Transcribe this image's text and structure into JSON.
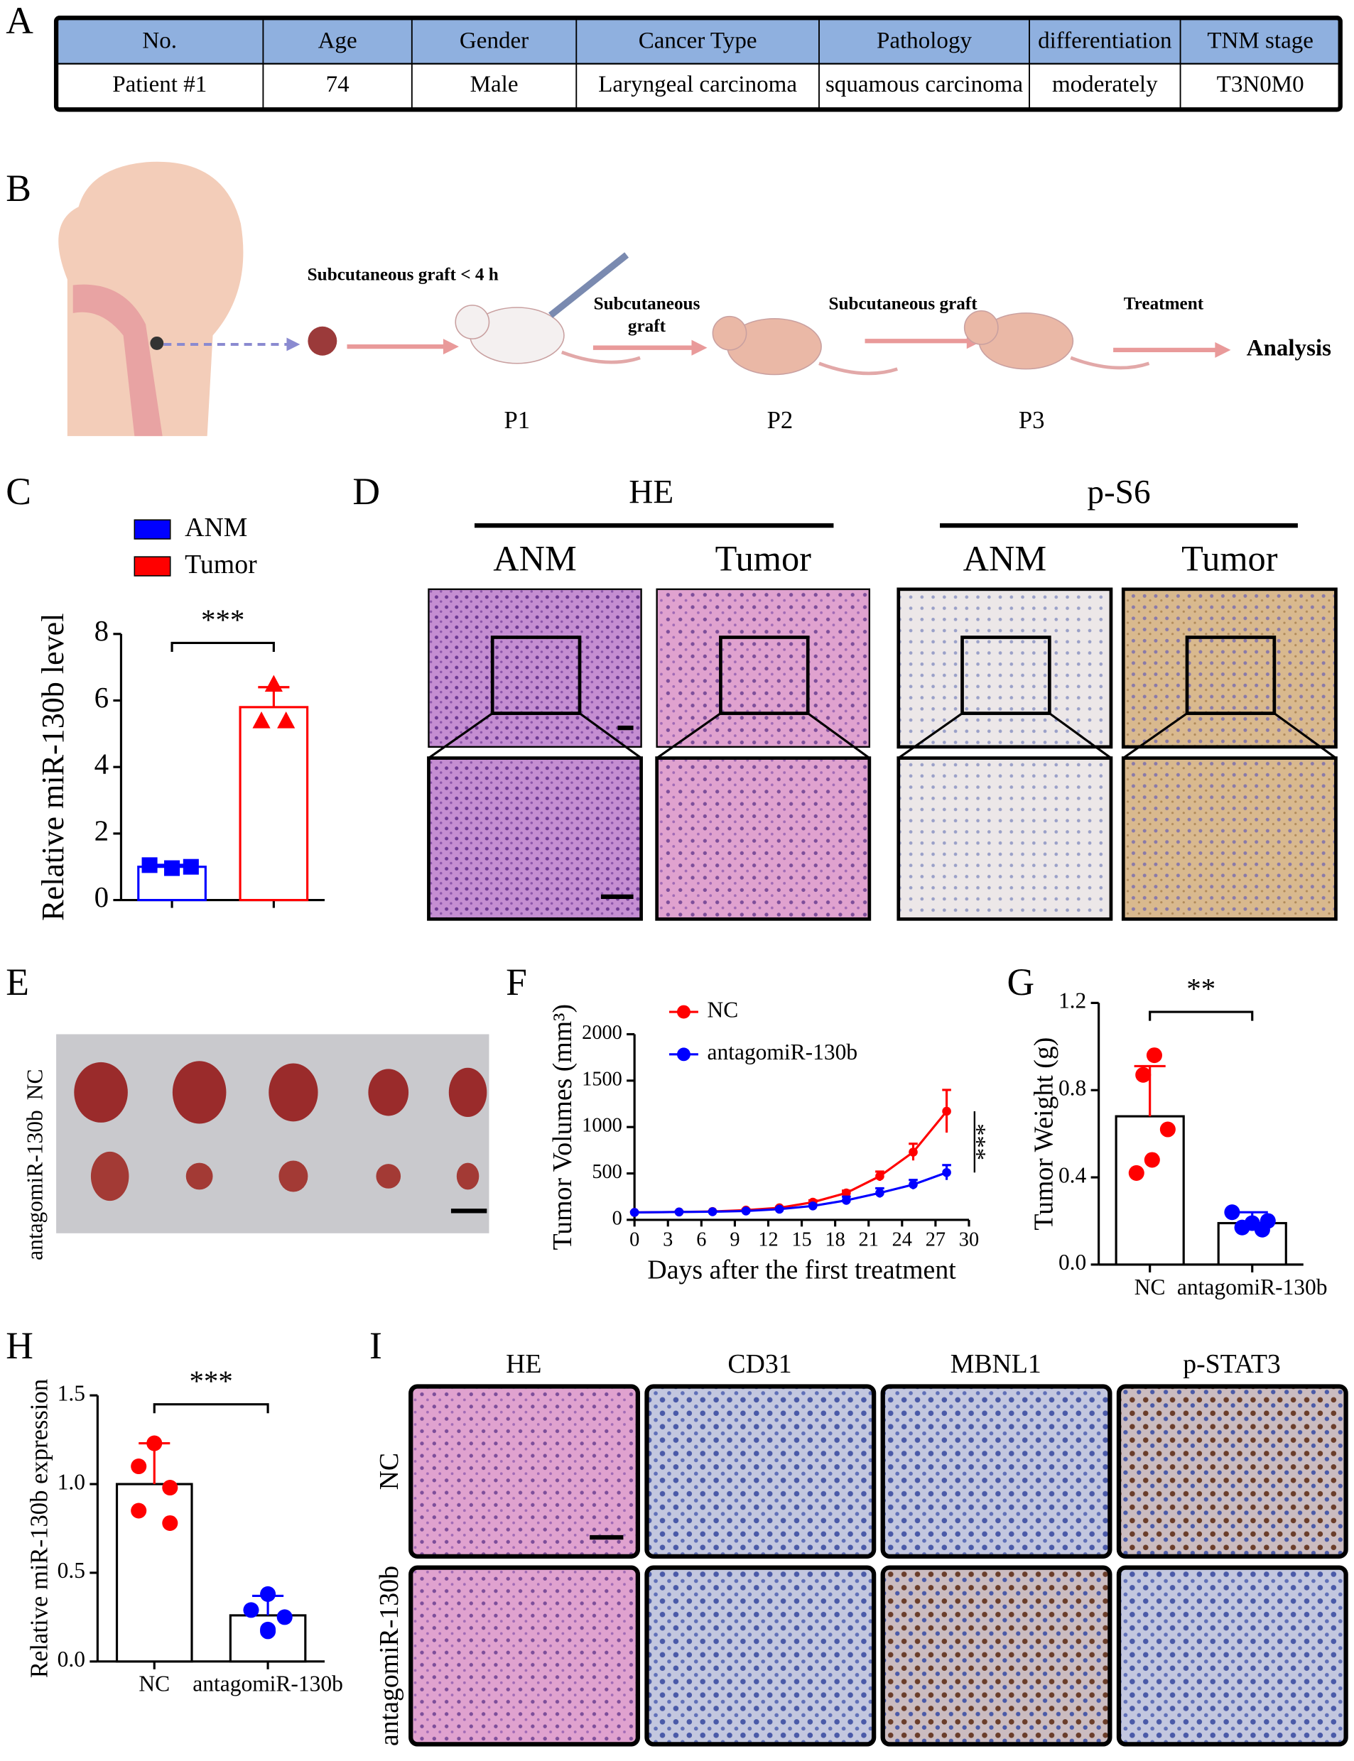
{
  "panels": [
    "A",
    "B",
    "C",
    "D",
    "E",
    "F",
    "G",
    "H",
    "I"
  ],
  "table": {
    "header": [
      "No.",
      "Age",
      "Gender",
      "Cancer Type",
      "Pathology",
      "differentiation",
      "TNM stage"
    ],
    "rows": [
      [
        "Patient #1",
        "74",
        "Male",
        "Laryngeal carcinoma",
        "squamous carcinoma",
        "moderately",
        "T3N0M0"
      ]
    ]
  },
  "diagram": {
    "steps": [
      [
        "Subcutaneous graft < 4 h"
      ],
      [
        "Subcutaneous",
        "graft"
      ],
      [
        "Subcutaneous graft"
      ],
      [
        "Treatment"
      ]
    ],
    "result": "Analysis",
    "passages": [
      "P1",
      "P2",
      "P3"
    ]
  },
  "histology_D": {
    "groups": [
      "HE",
      "p-S6"
    ],
    "columns": [
      "ANM",
      "Tumor",
      "ANM",
      "Tumor"
    ]
  },
  "photo_E": {
    "rows": [
      "NC",
      "antagomiR-130b"
    ]
  },
  "histology_I": {
    "columns": [
      "HE",
      "CD31",
      "MBNL1",
      "p-STAT3"
    ],
    "rows": [
      "NC",
      "antagomiR-130b"
    ]
  },
  "chart_data": [
    {
      "type": "bar",
      "ylabel": "Relative miR-130b level",
      "categories": [
        null,
        null
      ],
      "legend": [
        "ANM",
        "Tumor"
      ],
      "colors": [
        "#0000ff",
        "#ff0000"
      ],
      "markers": [
        "square",
        "triangle"
      ],
      "bar_edge_colored": true,
      "values": [
        1.0,
        5.8
      ],
      "errors": [
        0.06,
        0.6
      ],
      "points": [
        [
          1.05,
          0.96,
          1.0
        ],
        [
          6.5,
          5.4,
          5.4
        ]
      ],
      "ylim": [
        0,
        8
      ],
      "yticks": [
        0,
        2,
        4,
        6,
        8
      ],
      "significance": "***"
    },
    {
      "type": "line",
      "xlabel": "Days after the first treatment",
      "ylabel": "Tumor Volumes (mm³)",
      "x": [
        0,
        4,
        7,
        10,
        13,
        16,
        19,
        22,
        25,
        28
      ],
      "xlim": [
        0,
        30
      ],
      "xticks": [
        0,
        3,
        6,
        9,
        12,
        15,
        18,
        21,
        24,
        27,
        30
      ],
      "ylim": [
        0,
        2000
      ],
      "yticks": [
        0,
        500,
        1000,
        1500,
        2000
      ],
      "series": [
        {
          "name": "NC",
          "color": "#ff0000",
          "values": [
            80,
            85,
            90,
            105,
            130,
            190,
            290,
            470,
            730,
            1170
          ],
          "errors": [
            5,
            5,
            5,
            10,
            10,
            20,
            25,
            50,
            90,
            230
          ]
        },
        {
          "name": "antagomiR-130b",
          "color": "#0000ff",
          "values": [
            80,
            85,
            88,
            95,
            115,
            150,
            210,
            290,
            380,
            510
          ],
          "errors": [
            5,
            5,
            5,
            10,
            10,
            15,
            40,
            50,
            50,
            80
          ]
        }
      ],
      "significance": "***"
    },
    {
      "type": "bar",
      "ylabel": "Tumor Weight (g)",
      "categories": [
        "NC",
        "antagomiR-130b"
      ],
      "colors": [
        "#ff0000",
        "#0000ff"
      ],
      "markers": [
        "circle",
        "circle"
      ],
      "bar_edge_colored": false,
      "values": [
        0.68,
        0.19
      ],
      "errors": [
        0.23,
        0.05
      ],
      "points": [
        [
          0.96,
          0.87,
          0.62,
          0.48,
          0.42
        ],
        [
          0.24,
          0.2,
          0.19,
          0.17,
          0.16
        ]
      ],
      "ylim": [
        0,
        1.2
      ],
      "yticks": [
        {
          "value": 0,
          "label": "0.0"
        },
        0.4,
        0.8,
        1.2
      ],
      "significance": "**"
    },
    {
      "type": "bar",
      "ylabel": "Relative miR-130b expression",
      "categories": [
        "NC",
        "antagomiR-130b"
      ],
      "colors": [
        "#ff0000",
        "#0000ff"
      ],
      "markers": [
        "circle",
        "circle"
      ],
      "bar_edge_colored": false,
      "values": [
        1.0,
        0.26
      ],
      "errors": [
        0.23,
        0.11
      ],
      "points": [
        [
          1.23,
          1.1,
          0.98,
          0.85,
          0.78
        ],
        [
          0.38,
          0.29,
          0.25,
          0.18,
          0.17
        ]
      ],
      "ylim": [
        0,
        1.5
      ],
      "yticks": [
        {
          "value": 0,
          "label": "0.0"
        },
        0.5,
        {
          "value": 1,
          "label": "1.0"
        },
        1.5
      ],
      "significance": "***"
    }
  ]
}
